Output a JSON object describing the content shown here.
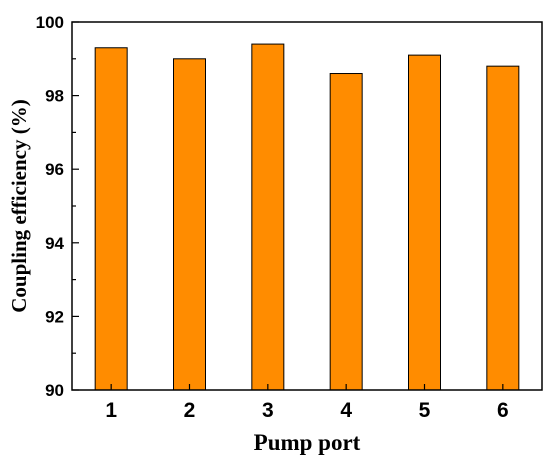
{
  "chart_data": {
    "type": "bar",
    "categories": [
      "1",
      "2",
      "3",
      "4",
      "5",
      "6"
    ],
    "values": [
      99.3,
      99.0,
      99.4,
      98.6,
      99.1,
      98.8
    ],
    "xlabel": "Pump port",
    "ylabel": "Coupling efficiency (%)",
    "ylim": [
      90,
      100
    ],
    "yticks": [
      "90",
      "92",
      "94",
      "96",
      "98",
      "100"
    ],
    "grid": false,
    "legend": "none",
    "bar_color": "#FF8C00",
    "bar_edge_color": "#000000"
  }
}
